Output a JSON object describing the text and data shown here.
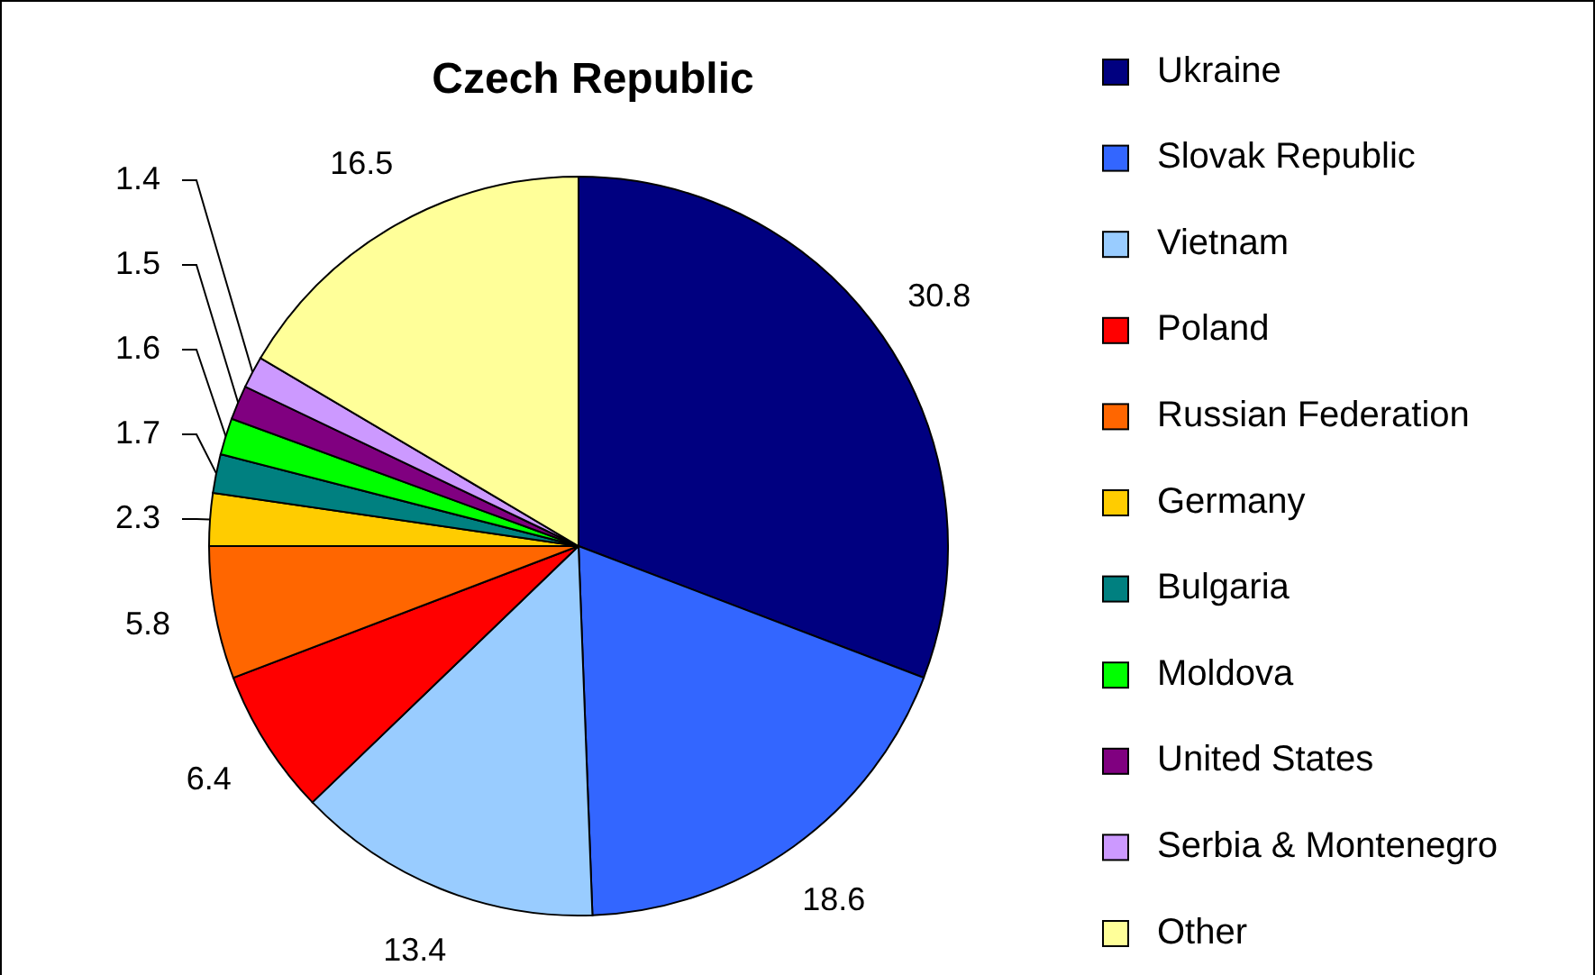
{
  "chart_data": {
    "type": "pie",
    "title": "Czech Republic",
    "categories": [
      "Ukraine",
      "Slovak Republic",
      "Vietnam",
      "Poland",
      "Russian Federation",
      "Germany",
      "Bulgaria",
      "Moldova",
      "United States",
      "Serbia & Montenegro",
      "Other"
    ],
    "values": [
      30.8,
      18.6,
      13.4,
      6.4,
      5.8,
      2.3,
      1.7,
      1.6,
      1.5,
      1.4,
      16.5
    ],
    "colors": [
      "#000080",
      "#3366ff",
      "#99ccff",
      "#ff0000",
      "#ff6600",
      "#ffcc00",
      "#008080",
      "#00ff00",
      "#800080",
      "#cc99ff",
      "#ffff99"
    ],
    "data_labels": true,
    "legend": "right"
  }
}
